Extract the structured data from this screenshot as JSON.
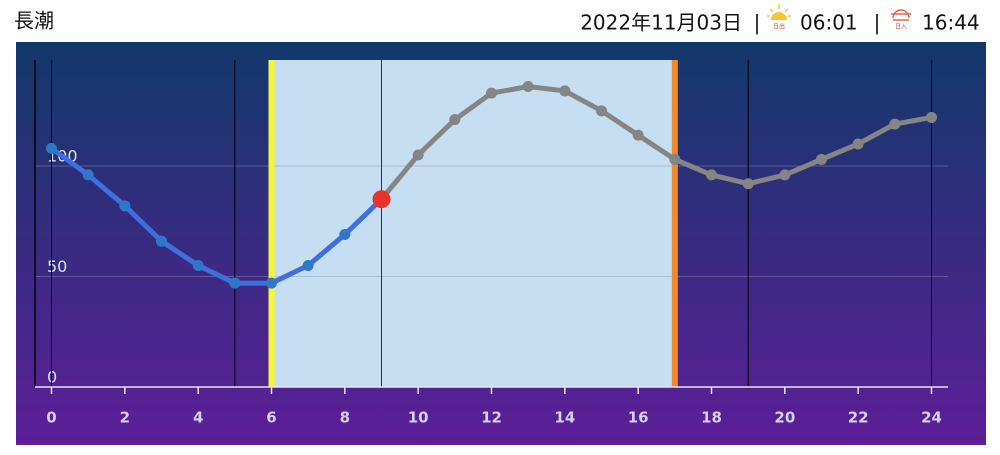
{
  "header": {
    "title": "長潮",
    "date": "2022年11月03日",
    "separator": "|",
    "sunrise_label": "日出",
    "sunrise": "06:01",
    "sunset_label": "日入",
    "sunset": "16:44"
  },
  "chart_data": {
    "type": "line",
    "x": [
      0,
      1,
      2,
      3,
      4,
      5,
      6,
      7,
      8,
      9,
      10,
      11,
      12,
      13,
      14,
      15,
      16,
      17,
      18,
      19,
      20,
      21,
      22,
      23,
      24
    ],
    "series": [
      {
        "color": "#3f6fdc",
        "point_color": "#2f78c8",
        "future_color": "#858585",
        "current_color": "#e8322a",
        "values": [
          108,
          96,
          82,
          66,
          55,
          47,
          47,
          55,
          69,
          85,
          105,
          121,
          133,
          136,
          134,
          125,
          114,
          103,
          96,
          92,
          96,
          103,
          110,
          119,
          122
        ]
      }
    ],
    "current_x": 9,
    "daylight_x": [
      6,
      17
    ],
    "event_lines_x": [
      0,
      5,
      19,
      24
    ],
    "xlim": [
      -0.45,
      24.45
    ],
    "ylim": [
      0,
      148
    ],
    "xticks": [
      0,
      2,
      4,
      6,
      8,
      10,
      12,
      14,
      16,
      18,
      20,
      22,
      24
    ],
    "yticks": [
      0,
      50,
      100
    ],
    "grid": true
  }
}
